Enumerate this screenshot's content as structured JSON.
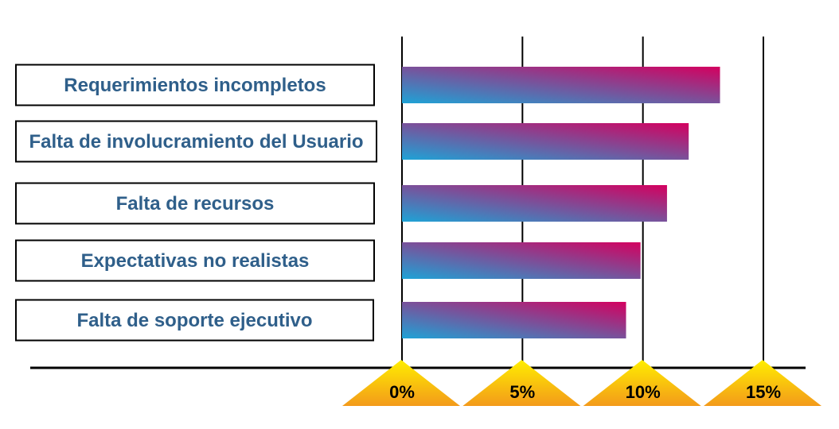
{
  "chart_data": {
    "type": "bar",
    "orientation": "horizontal",
    "categories": [
      "Requerimientos incompletos",
      "Falta de involucramiento del Usuario",
      "Falta de recursos",
      "Expectativas no realistas",
      "Falta de soporte ejecutivo"
    ],
    "values": [
      13.2,
      11.9,
      11.0,
      9.9,
      9.3
    ],
    "ticks": [
      "0%",
      "5%",
      "10%",
      "15%"
    ],
    "tick_values": [
      0,
      5,
      10,
      15
    ],
    "xlim": [
      0,
      15
    ],
    "grid": true,
    "legend": "none",
    "colors": {
      "bar_start": "#1ea3d6",
      "bar_end": "#d4005f",
      "label_text": "#2f5f8a",
      "marker_top": "#ffee00",
      "marker_bottom": "#f39a1a",
      "axis": "#000000"
    }
  }
}
